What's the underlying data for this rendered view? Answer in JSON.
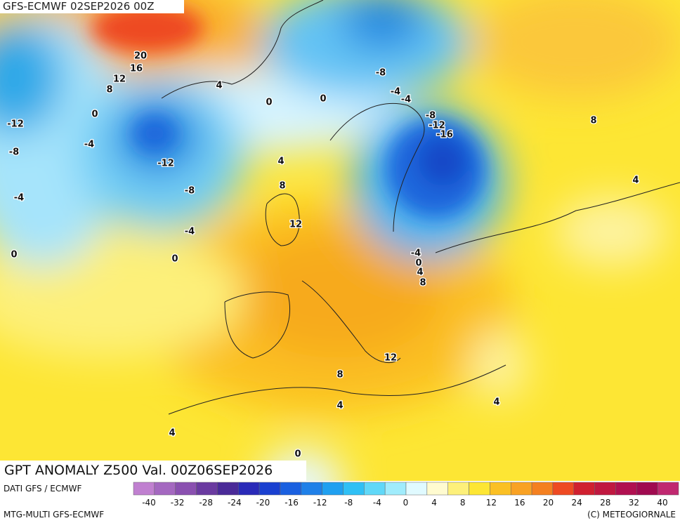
{
  "header": {
    "run": "GFS-ECMWF 02SEP2026 00Z",
    "title": "GPT ANOMALY Z500 Val. 00Z06SEP2026"
  },
  "footer": {
    "source": "DATI GFS / ECMWF",
    "model": "MTG-MULTI GFS-ECMWF",
    "copyright": "(C) METEOGIORNALE"
  },
  "scale_labels": [
    "-40",
    "-32",
    "-28",
    "-24",
    "-20",
    "-16",
    "-12",
    "-8",
    "-4",
    "0",
    "4",
    "8",
    "12",
    "16",
    "20",
    "24",
    "28",
    "32",
    "40"
  ],
  "contour_labels": [
    "20",
    "16",
    "12",
    "8",
    "4",
    "0",
    "0",
    "0",
    "-8",
    "-4",
    "-4",
    "-8",
    "-12",
    "-16",
    "8",
    "-12",
    "-8",
    "-4",
    "-12",
    "-8",
    "-4",
    "-4",
    "0",
    "0",
    "4",
    "8",
    "12",
    "4",
    "-4",
    "0",
    "4",
    "8",
    "12",
    "8",
    "4",
    "4",
    "4",
    "0"
  ]
}
